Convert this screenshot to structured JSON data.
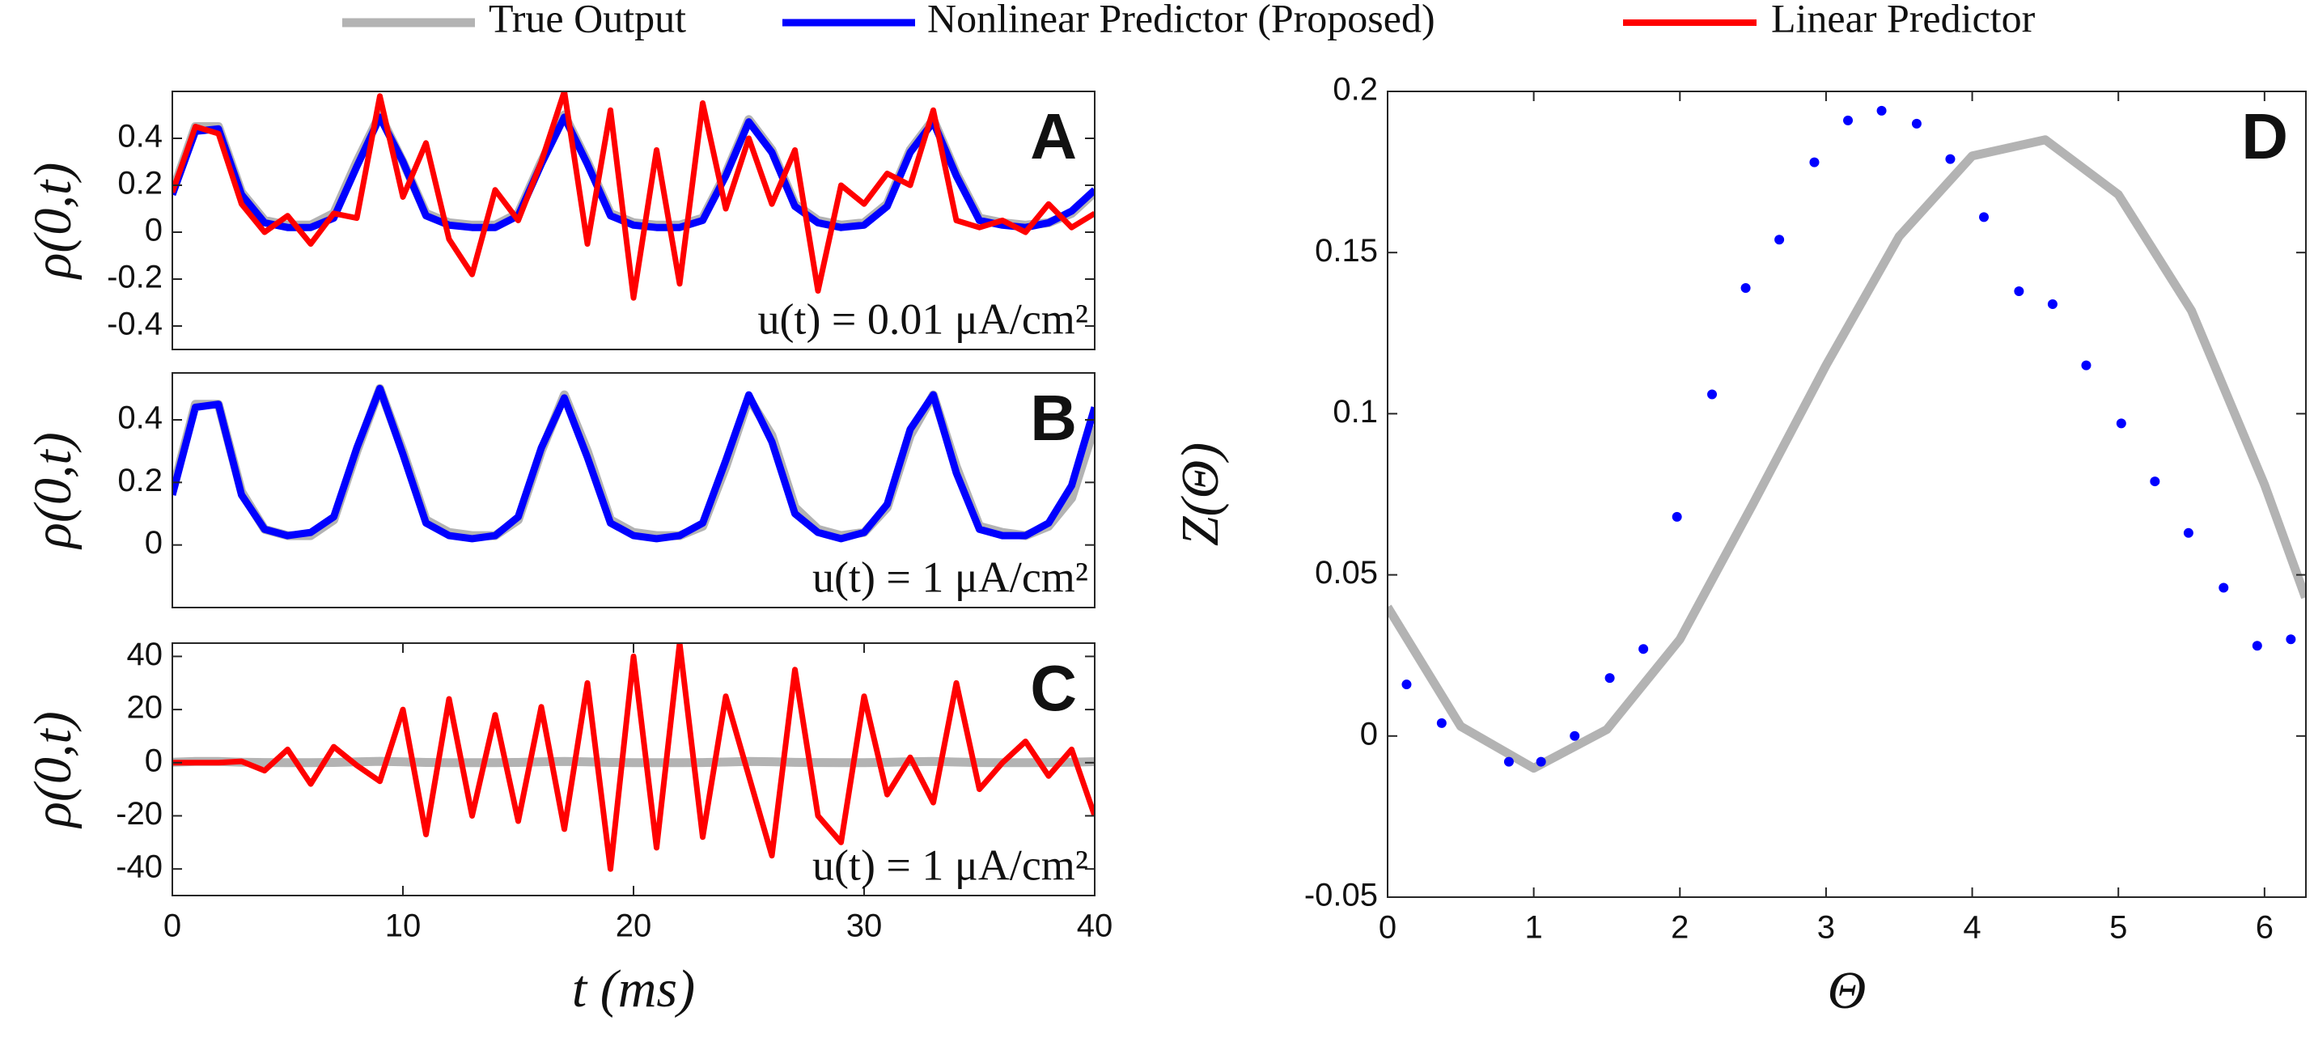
{
  "chart_data": [
    {
      "type": "line",
      "panel": "A",
      "ylabel": "ρ(0,t)",
      "annotation": "u(t) = 0.01 μA/cm²",
      "xlim": [
        0,
        40
      ],
      "ylim": [
        -0.5,
        0.6
      ],
      "yticks": [
        -0.4,
        -0.2,
        0,
        0.2,
        0.4
      ],
      "x": [
        0,
        1,
        2,
        3,
        4,
        5,
        6,
        7,
        8,
        9,
        10,
        11,
        12,
        13,
        14,
        15,
        16,
        17,
        18,
        19,
        20,
        21,
        22,
        23,
        24,
        25,
        26,
        27,
        28,
        29,
        30,
        31,
        32,
        33,
        34,
        35,
        36,
        37,
        38,
        39,
        40
      ],
      "series": [
        {
          "name": "True Output",
          "color": "#b3b3b3",
          "values": [
            0.17,
            0.45,
            0.45,
            0.17,
            0.05,
            0.03,
            0.03,
            0.08,
            0.3,
            0.5,
            0.3,
            0.08,
            0.04,
            0.03,
            0.03,
            0.08,
            0.3,
            0.5,
            0.3,
            0.08,
            0.04,
            0.03,
            0.03,
            0.06,
            0.25,
            0.48,
            0.35,
            0.12,
            0.05,
            0.03,
            0.04,
            0.12,
            0.35,
            0.48,
            0.25,
            0.06,
            0.04,
            0.03,
            0.04,
            0.08,
            0.17
          ]
        },
        {
          "name": "Nonlinear Predictor (Proposed)",
          "color": "#0000ff",
          "values": [
            0.16,
            0.43,
            0.44,
            0.16,
            0.04,
            0.02,
            0.02,
            0.06,
            0.28,
            0.49,
            0.3,
            0.07,
            0.03,
            0.02,
            0.02,
            0.07,
            0.29,
            0.49,
            0.29,
            0.07,
            0.03,
            0.02,
            0.02,
            0.05,
            0.24,
            0.47,
            0.34,
            0.11,
            0.04,
            0.02,
            0.03,
            0.11,
            0.34,
            0.47,
            0.24,
            0.05,
            0.03,
            0.02,
            0.04,
            0.09,
            0.18
          ]
        },
        {
          "name": "Linear Predictor",
          "color": "#ff0000",
          "values": [
            0.17,
            0.45,
            0.42,
            0.12,
            0.0,
            0.07,
            -0.05,
            0.08,
            0.06,
            0.58,
            0.15,
            0.38,
            -0.03,
            -0.18,
            0.18,
            0.05,
            0.3,
            0.6,
            -0.05,
            0.52,
            -0.28,
            0.35,
            -0.22,
            0.55,
            0.1,
            0.4,
            0.12,
            0.35,
            -0.25,
            0.2,
            0.12,
            0.25,
            0.2,
            0.52,
            0.05,
            0.02,
            0.05,
            0.0,
            0.12,
            0.02,
            0.08
          ]
        }
      ]
    },
    {
      "type": "line",
      "panel": "B",
      "ylabel": "ρ(0,t)",
      "annotation": "u(t) = 1 μA/cm²",
      "xlim": [
        0,
        40
      ],
      "ylim": [
        -0.2,
        0.55
      ],
      "yticks": [
        0,
        0.2,
        0.4
      ],
      "x": [
        0,
        1,
        2,
        3,
        4,
        5,
        6,
        7,
        8,
        9,
        10,
        11,
        12,
        13,
        14,
        15,
        16,
        17,
        18,
        19,
        20,
        21,
        22,
        23,
        24,
        25,
        26,
        27,
        28,
        29,
        30,
        31,
        32,
        33,
        34,
        35,
        36,
        37,
        38,
        39,
        40
      ],
      "series": [
        {
          "name": "True Output",
          "color": "#b3b3b3",
          "values": [
            0.17,
            0.45,
            0.45,
            0.17,
            0.05,
            0.03,
            0.03,
            0.08,
            0.3,
            0.5,
            0.3,
            0.08,
            0.04,
            0.03,
            0.03,
            0.08,
            0.3,
            0.48,
            0.3,
            0.08,
            0.04,
            0.03,
            0.03,
            0.06,
            0.25,
            0.47,
            0.35,
            0.12,
            0.05,
            0.03,
            0.04,
            0.12,
            0.35,
            0.48,
            0.25,
            0.06,
            0.04,
            0.03,
            0.06,
            0.15,
            0.38
          ]
        },
        {
          "name": "Nonlinear Predictor (Proposed)",
          "color": "#0000ff",
          "values": [
            0.16,
            0.44,
            0.45,
            0.16,
            0.05,
            0.03,
            0.04,
            0.09,
            0.31,
            0.5,
            0.29,
            0.07,
            0.03,
            0.02,
            0.03,
            0.09,
            0.31,
            0.47,
            0.28,
            0.07,
            0.03,
            0.02,
            0.03,
            0.07,
            0.27,
            0.48,
            0.33,
            0.1,
            0.04,
            0.02,
            0.04,
            0.13,
            0.37,
            0.48,
            0.23,
            0.05,
            0.03,
            0.03,
            0.07,
            0.19,
            0.44
          ]
        }
      ]
    },
    {
      "type": "line",
      "panel": "C",
      "ylabel": "ρ(0,t)",
      "xlabel": "t (ms)",
      "annotation": "u(t) = 1 μA/cm²",
      "xlim": [
        0,
        40
      ],
      "ylim": [
        -50,
        45
      ],
      "yticks": [
        -40,
        -20,
        0,
        20,
        40
      ],
      "xticks": [
        0,
        10,
        20,
        30,
        40
      ],
      "x": [
        0,
        1,
        2,
        3,
        4,
        5,
        6,
        7,
        8,
        9,
        10,
        11,
        12,
        13,
        14,
        15,
        16,
        17,
        18,
        19,
        20,
        21,
        22,
        23,
        24,
        25,
        26,
        27,
        28,
        29,
        30,
        31,
        32,
        33,
        34,
        35,
        36,
        37,
        38,
        39,
        40
      ],
      "series": [
        {
          "name": "True Output",
          "color": "#b3b3b3",
          "values": [
            0.17,
            0.45,
            0.45,
            0.17,
            0.05,
            0.03,
            0.03,
            0.08,
            0.3,
            0.5,
            0.3,
            0.08,
            0.04,
            0.03,
            0.03,
            0.08,
            0.3,
            0.48,
            0.3,
            0.08,
            0.04,
            0.03,
            0.03,
            0.06,
            0.25,
            0.47,
            0.35,
            0.12,
            0.05,
            0.03,
            0.04,
            0.12,
            0.35,
            0.48,
            0.25,
            0.06,
            0.04,
            0.03,
            0.06,
            0.15,
            0.38
          ]
        },
        {
          "name": "Linear Predictor",
          "color": "#ff0000",
          "values": [
            0,
            0,
            0,
            0.5,
            -3,
            5,
            -8,
            6,
            -1,
            -7,
            20,
            -27,
            24,
            -20,
            18,
            -22,
            21,
            -25,
            30,
            -40,
            40,
            -32,
            45,
            -28,
            25,
            -5,
            -35,
            35,
            -20,
            -30,
            25,
            -12,
            2,
            -15,
            30,
            -10,
            0,
            8,
            -5,
            5,
            -20
          ]
        }
      ]
    },
    {
      "type": "line",
      "panel": "D",
      "ylabel": "Z(Θ)",
      "xlabel": "Θ",
      "xlim": [
        0,
        6.2832
      ],
      "ylim": [
        -0.05,
        0.2
      ],
      "xticks": [
        0,
        1,
        2,
        3,
        4,
        5,
        6
      ],
      "yticks": [
        -0.05,
        0,
        0.05,
        0.1,
        0.15,
        0.2
      ],
      "series": [
        {
          "name": "True Output",
          "type": "line",
          "color": "#b3b3b3",
          "x": [
            0,
            0.5,
            1,
            1.5,
            2,
            2.5,
            3,
            3.5,
            4,
            4.5,
            5,
            5.5,
            6,
            6.28
          ],
          "values": [
            0.04,
            0.003,
            -0.01,
            0.002,
            0.03,
            0.072,
            0.115,
            0.155,
            0.18,
            0.185,
            0.168,
            0.132,
            0.078,
            0.043
          ]
        },
        {
          "name": "Nonlinear Predictor (Proposed)",
          "type": "scatter",
          "color": "#0000ff",
          "x": [
            0.13,
            0.37,
            0.83,
            1.05,
            1.28,
            1.52,
            1.75,
            1.98,
            2.22,
            2.45,
            2.68,
            2.92,
            3.15,
            3.38,
            3.62,
            3.85,
            4.08,
            4.32,
            4.55,
            4.78,
            5.02,
            5.25,
            5.48,
            5.72,
            5.95,
            6.18
          ],
          "values": [
            0.016,
            0.004,
            -0.008,
            -0.008,
            0.0,
            0.018,
            0.027,
            0.068,
            0.106,
            0.139,
            0.154,
            0.178,
            0.191,
            0.194,
            0.19,
            0.179,
            0.161,
            0.138,
            0.134,
            0.115,
            0.097,
            0.079,
            0.063,
            0.046,
            0.028,
            0.03
          ]
        }
      ]
    }
  ]
}
